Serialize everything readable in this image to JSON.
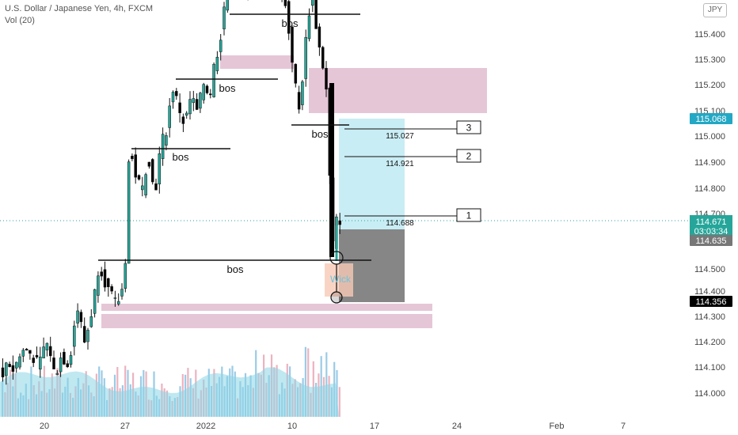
{
  "header": {
    "symbol_line": "U.S. Dollar / Japanese Yen, 4h, FXCM",
    "volume_line": "Vol (20)",
    "currency_button": "JPY"
  },
  "chart_data": {
    "type": "candlestick",
    "y_axis": {
      "range": [
        113.92,
        115.55
      ],
      "ticks": [
        "115.400",
        "115.300",
        "115.200",
        "115.100",
        "115.000",
        "114.900",
        "114.800",
        "114.700",
        "114.500",
        "114.400",
        "114.300",
        "114.200",
        "114.100",
        "114.000"
      ]
    },
    "x_axis": {
      "ticks": [
        "20",
        "27",
        "2022",
        "10",
        "17",
        "24",
        "Feb",
        "7"
      ]
    },
    "price_labels": {
      "top": "115.068",
      "current_price": "114.671",
      "countdown": "03:03:34",
      "lower": "114.635",
      "bottom": "114.356"
    },
    "bos_labels": [
      {
        "text": "bos",
        "price": 115.45
      },
      {
        "text": "bos",
        "price": 115.19
      },
      {
        "text": "bos",
        "price": 114.94
      },
      {
        "text": "bos",
        "price": 115.02
      },
      {
        "text": "bos",
        "price": 114.49
      }
    ],
    "targets": [
      {
        "number": "3",
        "level": "115.027"
      },
      {
        "number": "2",
        "level": "114.921"
      },
      {
        "number": "1",
        "level": "114.688"
      }
    ],
    "wick_label": "Wick",
    "colors": {
      "up_candle": "#26a69a",
      "down_candle": "#000000",
      "zone": "#e1bcd0",
      "target_zone": "#bfeaf2",
      "stop_zone": "#808080",
      "volume_ma": "#8ad6e6"
    }
  }
}
